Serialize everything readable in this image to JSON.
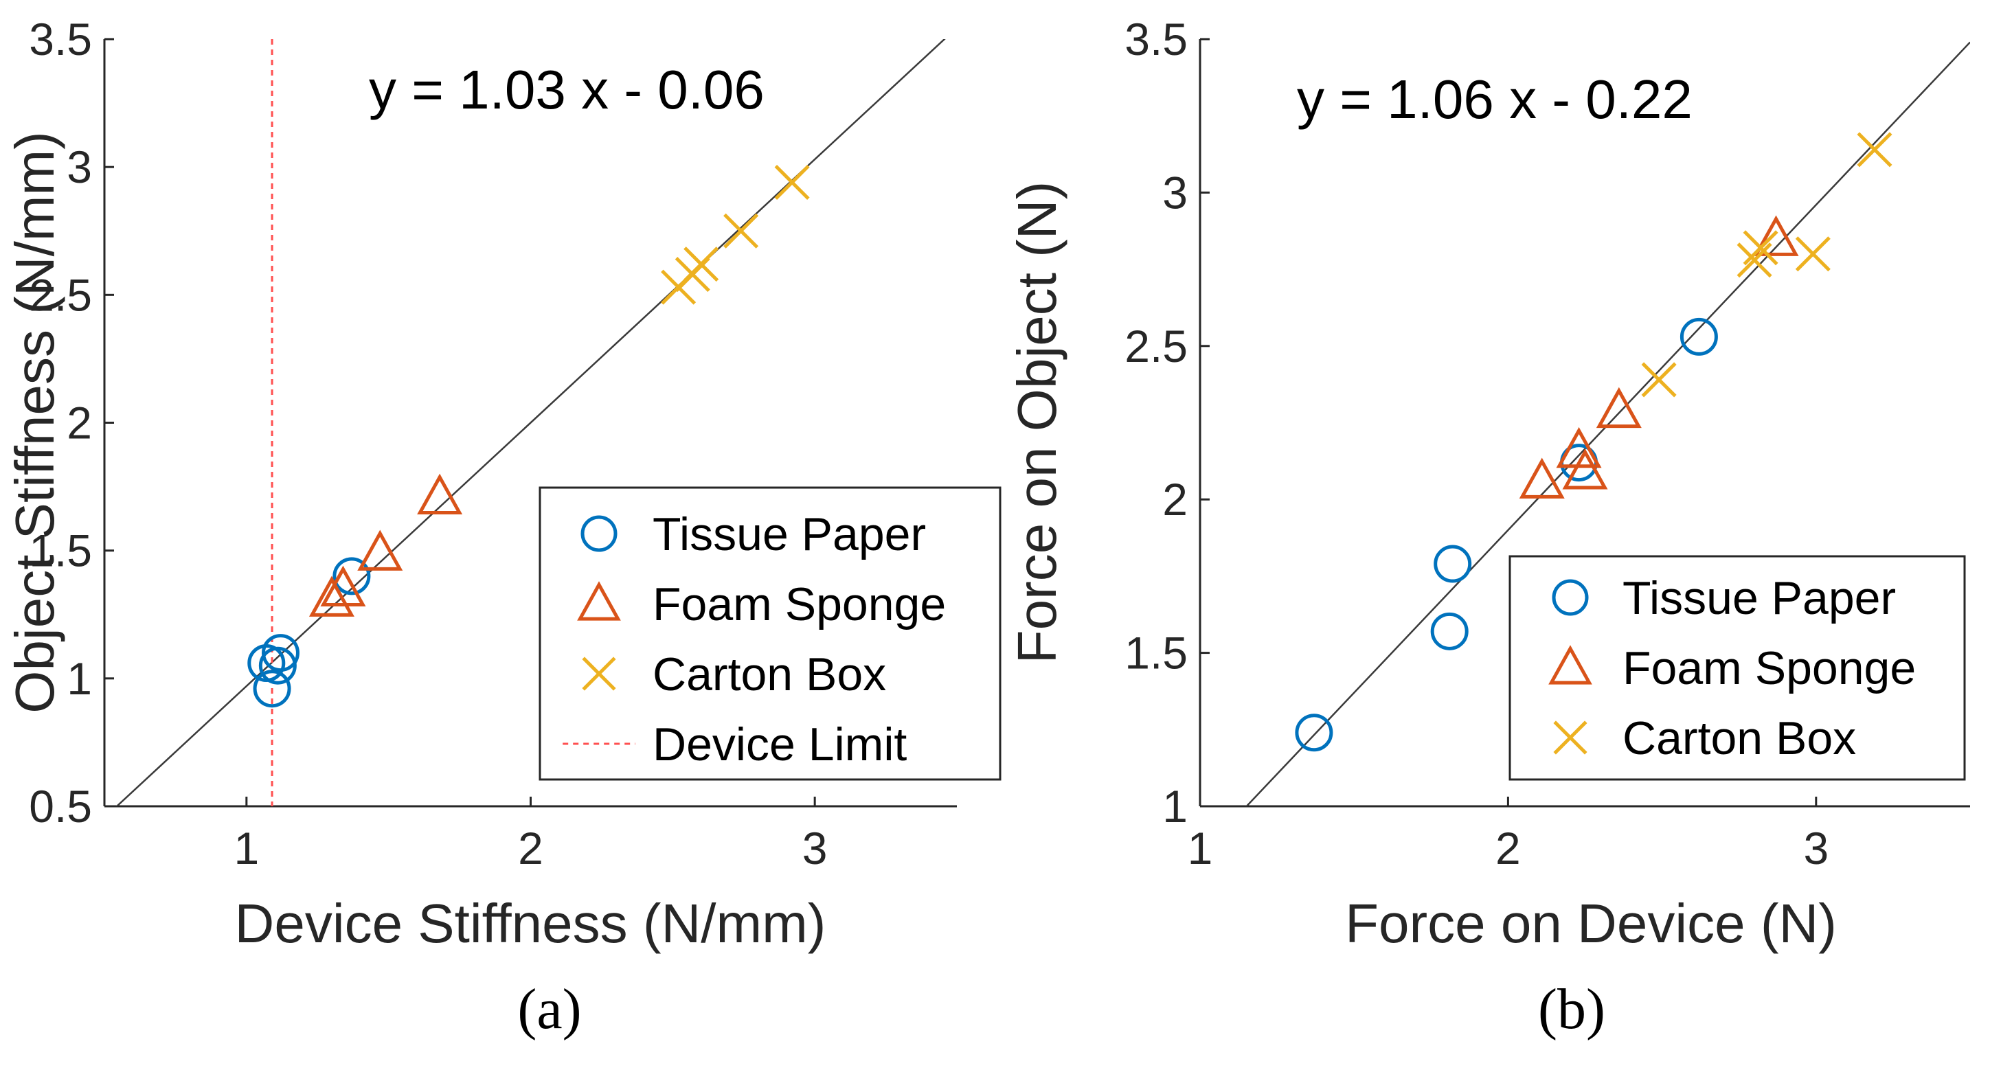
{
  "chart_data": [
    {
      "type": "scatter",
      "panel": "a",
      "caption": "(a)",
      "xlabel": "Device Stiffness (N/mm)",
      "ylabel": "Object Stiffness (N/mm)",
      "xlim": [
        0.5,
        3.5
      ],
      "ylim": [
        0.5,
        3.5
      ],
      "xticks": [
        1,
        2,
        3
      ],
      "xtick_labels": [
        "1",
        "2",
        "3"
      ],
      "yticks": [
        0.5,
        1,
        1.5,
        2,
        2.5,
        3,
        3.5
      ],
      "ytick_labels": [
        "0.5",
        "1",
        "1.5",
        "2",
        "2.5",
        "3",
        "3.5"
      ],
      "fit": {
        "slope": 1.03,
        "intercept": -0.06,
        "label": "y = 1.03 x - 0.06"
      },
      "device_limit": {
        "x": 1.09,
        "label": "Device Limit"
      },
      "legend_position": "bottom-right",
      "series": [
        {
          "name": "Tissue Paper",
          "marker": "circle",
          "color": "#0072BD",
          "x": [
            1.09,
            1.12,
            1.07,
            1.11,
            1.37
          ],
          "y": [
            0.96,
            1.1,
            1.06,
            1.05,
            1.4
          ]
        },
        {
          "name": "Foam Sponge",
          "marker": "triangle",
          "color": "#D95319",
          "x": [
            1.3,
            1.34,
            1.47,
            1.68
          ],
          "y": [
            1.31,
            1.35,
            1.49,
            1.71
          ]
        },
        {
          "name": "Carton Box",
          "marker": "x",
          "color": "#EDB120",
          "x": [
            2.52,
            2.57,
            2.6,
            2.74,
            2.92
          ],
          "y": [
            2.53,
            2.58,
            2.62,
            2.75,
            2.94
          ]
        }
      ]
    },
    {
      "type": "scatter",
      "panel": "b",
      "caption": "(b)",
      "xlabel": "Force on Device (N)",
      "ylabel": "Force on Object (N)",
      "xlim": [
        1,
        3.5
      ],
      "ylim": [
        1,
        3.5
      ],
      "xticks": [
        1,
        2,
        3
      ],
      "xtick_labels": [
        "1",
        "2",
        "3"
      ],
      "yticks": [
        1,
        1.5,
        2,
        2.5,
        3,
        3.5
      ],
      "ytick_labels": [
        "1",
        "1.5",
        "2",
        "2.5",
        "3",
        "3.5"
      ],
      "fit": {
        "slope": 1.06,
        "intercept": -0.22,
        "label": "y = 1.06 x - 0.22"
      },
      "legend_position": "bottom-right",
      "series": [
        {
          "name": "Tissue Paper",
          "marker": "circle",
          "color": "#0072BD",
          "x": [
            1.37,
            1.82,
            1.81,
            2.23,
            2.62
          ],
          "y": [
            1.24,
            1.79,
            1.57,
            2.12,
            2.53
          ]
        },
        {
          "name": "Foam Sponge",
          "marker": "triangle",
          "color": "#D95319",
          "x": [
            2.11,
            2.23,
            2.25,
            2.36,
            2.87
          ],
          "y": [
            2.06,
            2.16,
            2.09,
            2.29,
            2.85
          ]
        },
        {
          "name": "Carton Box",
          "marker": "x",
          "color": "#EDB120",
          "x": [
            2.49,
            2.8,
            2.82,
            2.99,
            3.19
          ],
          "y": [
            2.39,
            2.78,
            2.82,
            2.8,
            3.14
          ]
        }
      ]
    }
  ]
}
